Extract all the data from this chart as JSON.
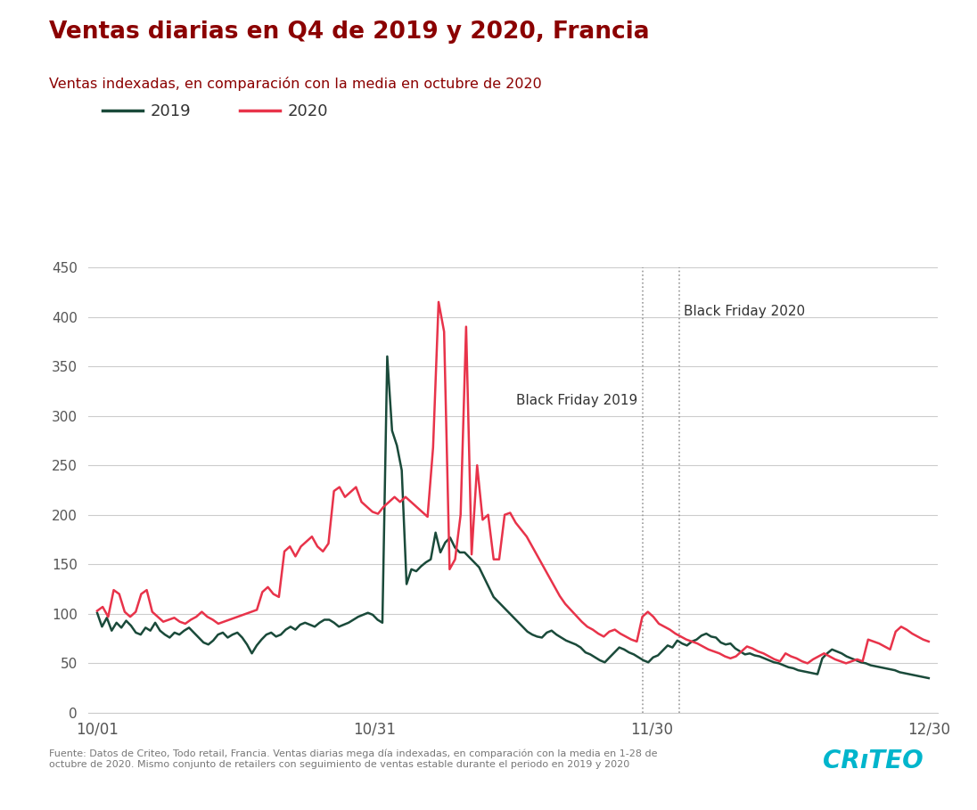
{
  "title": "Ventas diarias en Q4 de 2019 y 2020, Francia",
  "subtitle": "Ventas indexadas, en comparación con la media en octubre de 2020",
  "title_color": "#8B0000",
  "subtitle_color": "#8B0000",
  "line_2019_color": "#1a4a3a",
  "line_2020_color": "#e8334a",
  "background_color": "#ffffff",
  "grid_color": "#cccccc",
  "tick_color": "#555555",
  "ylim": [
    0,
    450
  ],
  "yticks": [
    0,
    50,
    100,
    150,
    200,
    250,
    300,
    350,
    400,
    450
  ],
  "xtick_labels": [
    "10/01",
    "10/31",
    "11/30",
    "12/30"
  ],
  "footer_text": "Fuente: Datos de Criteo, Todo retail, Francia. Ventas diarias mega día indexadas, en comparación con la media en 1-28 de\noctubre de 2020. Mismo conjunto de retailers con seguimiento de ventas estable durante el periodo en 2019 y 2020",
  "footer_color": "#777777",
  "annotation_bf2019": "Black Friday 2019",
  "annotation_bf2020": "Black Friday 2020",
  "annotation_color": "#333333",
  "vline_color": "#999999",
  "legend_2019": "2019",
  "legend_2020": "2020",
  "bf2019_day": 59,
  "bf2020_day": 63,
  "data_2019": [
    101,
    87,
    96,
    83,
    91,
    86,
    93,
    88,
    81,
    79,
    86,
    83,
    91,
    83,
    79,
    76,
    81,
    79,
    83,
    86,
    81,
    76,
    71,
    69,
    73,
    79,
    81,
    76,
    79,
    81,
    76,
    69,
    60,
    68,
    74,
    79,
    81,
    77,
    79,
    84,
    87,
    84,
    89,
    91,
    89,
    87,
    91,
    94,
    94,
    91,
    87,
    89,
    91,
    94,
    97,
    99,
    101,
    99,
    94,
    91,
    360,
    285,
    270,
    245,
    130,
    145,
    143,
    148,
    152,
    155,
    182,
    162,
    172,
    177,
    167,
    162,
    162,
    157,
    152,
    147,
    137,
    127,
    117,
    112,
    107,
    102,
    97,
    92,
    87,
    82,
    79,
    77,
    76,
    81,
    83,
    79,
    76,
    73,
    71,
    69,
    66,
    61,
    59,
    56,
    53,
    51,
    56,
    61,
    66,
    64,
    61,
    59,
    56,
    53,
    51,
    56,
    58,
    63,
    68,
    66,
    73,
    70,
    68,
    72,
    74,
    78,
    80,
    77,
    76,
    71,
    69,
    70,
    65,
    62,
    59,
    60,
    58,
    57,
    55,
    53,
    51,
    50,
    48,
    46,
    45,
    43,
    42,
    41,
    40,
    39,
    55,
    60,
    64,
    62,
    60,
    57,
    55,
    53,
    51,
    50,
    48,
    47,
    46,
    45,
    44,
    43,
    41,
    40,
    39,
    38,
    37,
    36,
    35
  ],
  "data_2020": [
    103,
    107,
    97,
    124,
    120,
    102,
    97,
    102,
    120,
    124,
    102,
    97,
    92,
    94,
    96,
    92,
    90,
    94,
    97,
    102,
    97,
    94,
    90,
    92,
    94,
    96,
    98,
    100,
    102,
    104,
    122,
    127,
    120,
    117,
    163,
    168,
    158,
    168,
    173,
    178,
    168,
    163,
    171,
    224,
    228,
    218,
    223,
    228,
    213,
    208,
    203,
    201,
    208,
    213,
    218,
    213,
    218,
    213,
    208,
    203,
    198,
    268,
    415,
    385,
    145,
    155,
    200,
    390,
    160,
    250,
    195,
    200,
    155,
    155,
    200,
    202,
    192,
    185,
    178,
    168,
    158,
    148,
    138,
    128,
    118,
    110,
    104,
    98,
    92,
    87,
    84,
    80,
    77,
    82,
    84,
    80,
    77,
    74,
    72,
    97,
    102,
    97,
    90,
    87,
    84,
    80,
    77,
    74,
    72,
    70,
    67,
    64,
    62,
    60,
    57,
    55,
    57,
    62,
    67,
    65,
    62,
    60,
    57,
    54,
    52,
    60,
    57,
    55,
    52,
    50,
    54,
    57,
    60,
    57,
    54,
    52,
    50,
    52,
    54,
    52,
    74,
    72,
    70,
    67,
    64,
    82,
    87,
    84,
    80,
    77,
    74,
    72
  ]
}
